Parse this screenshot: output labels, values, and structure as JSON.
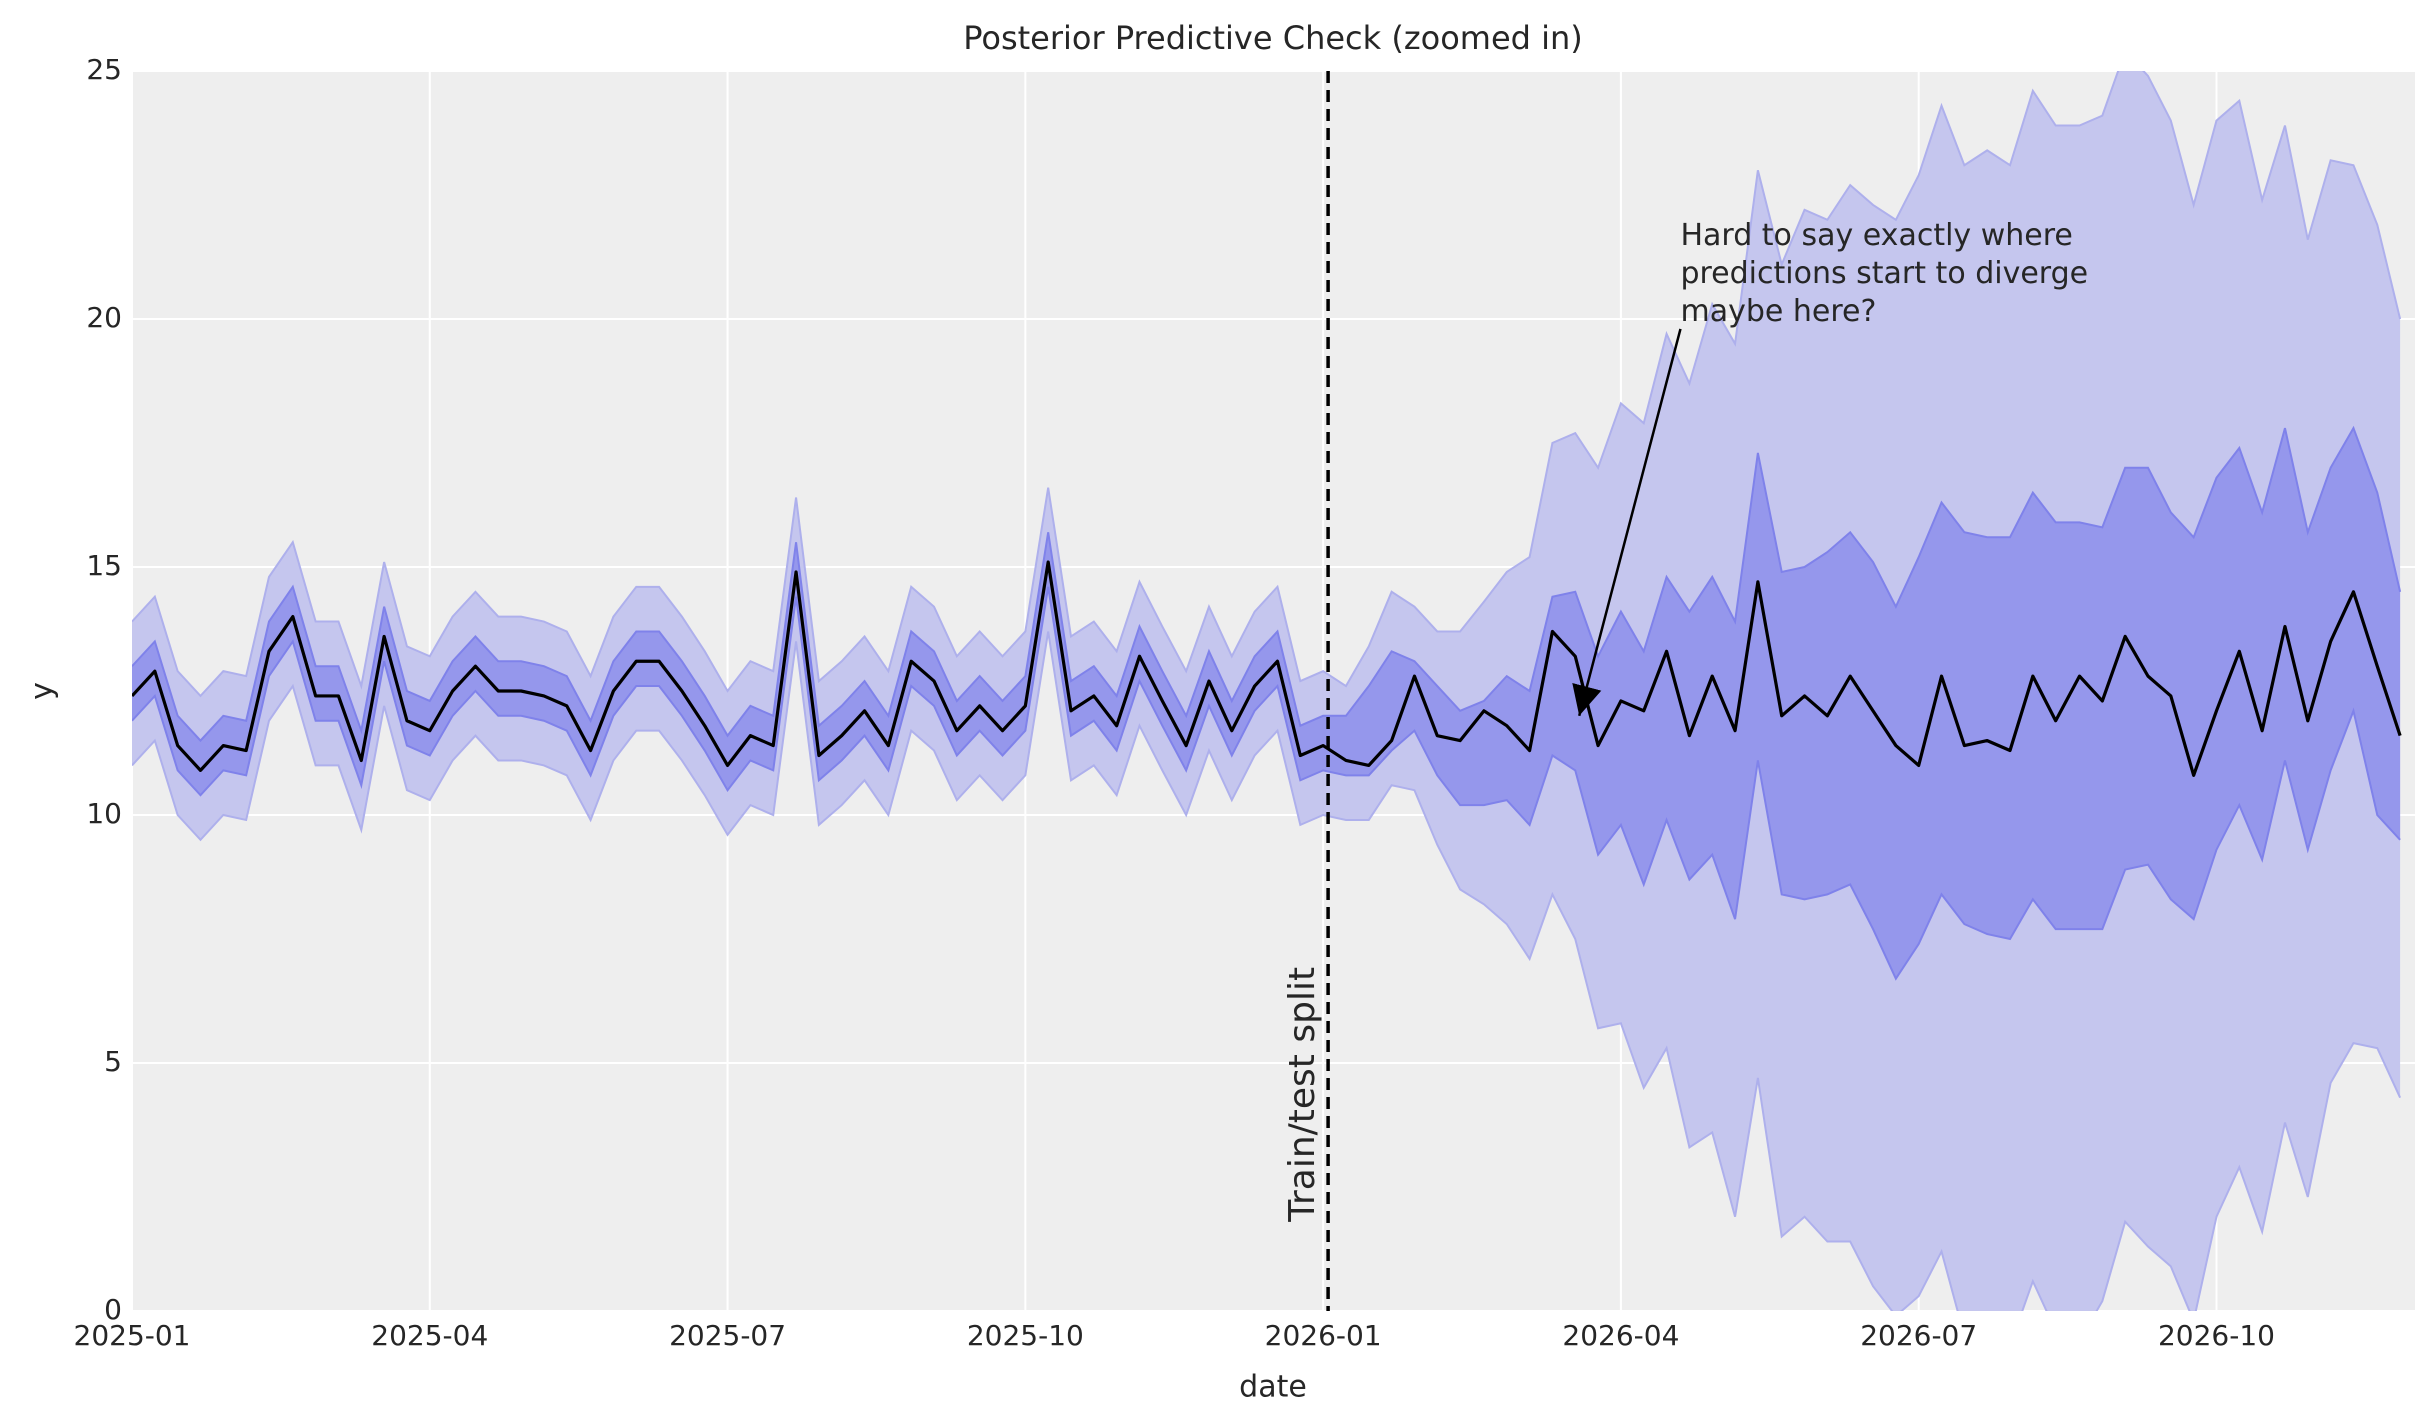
{
  "chart_data": {
    "type": "line",
    "title": "Posterior Predictive Check (zoomed in)",
    "x_label": "date",
    "y_label": "y",
    "xlim": [
      0,
      23
    ],
    "ylim": [
      0,
      25
    ],
    "xticks": [
      {
        "value": 0,
        "label": "2025-01"
      },
      {
        "value": 3,
        "label": "2025-04"
      },
      {
        "value": 6,
        "label": "2025-07"
      },
      {
        "value": 9,
        "label": "2025-10"
      },
      {
        "value": 12,
        "label": "2026-01"
      },
      {
        "value": 15,
        "label": "2026-04"
      },
      {
        "value": 18,
        "label": "2026-07"
      },
      {
        "value": 21,
        "label": "2026-10"
      }
    ],
    "yticks": [
      0,
      5,
      10,
      15,
      20,
      25
    ],
    "grid": true,
    "x": [
      0,
      0.23,
      0.46,
      0.69,
      0.92,
      1.15,
      1.38,
      1.62,
      1.85,
      2.08,
      2.31,
      2.54,
      2.77,
      3.0,
      3.23,
      3.46,
      3.69,
      3.92,
      4.15,
      4.38,
      4.62,
      4.85,
      5.08,
      5.31,
      5.54,
      5.77,
      6.0,
      6.23,
      6.46,
      6.69,
      6.92,
      7.15,
      7.38,
      7.62,
      7.85,
      8.08,
      8.31,
      8.54,
      8.77,
      9.0,
      9.23,
      9.46,
      9.69,
      9.92,
      10.15,
      10.38,
      10.62,
      10.85,
      11.08,
      11.31,
      11.54,
      11.77,
      12.0,
      12.23,
      12.46,
      12.69,
      12.92,
      13.15,
      13.38,
      13.62,
      13.85,
      14.08,
      14.31,
      14.54,
      14.77,
      15.0,
      15.23,
      15.46,
      15.69,
      15.92,
      16.15,
      16.38,
      16.62,
      16.85,
      17.08,
      17.31,
      17.54,
      17.77,
      18.0,
      18.23,
      18.46,
      18.69,
      18.92,
      19.15,
      19.38,
      19.62,
      19.85,
      20.08,
      20.31,
      20.54,
      20.77,
      21.0,
      21.23,
      21.46,
      21.69,
      21.92,
      22.15,
      22.38,
      22.62,
      22.85
    ],
    "bands": [
      {
        "color": "#c5c6ee",
        "edge": "#aeb0ec",
        "upper": [
          13.9,
          14.4,
          12.9,
          12.4,
          12.9,
          12.8,
          14.8,
          15.5,
          13.9,
          13.9,
          12.6,
          15.1,
          13.4,
          13.2,
          14.0,
          14.5,
          14.0,
          14.0,
          13.9,
          13.7,
          12.8,
          14.0,
          14.6,
          14.6,
          14.0,
          13.3,
          12.5,
          13.1,
          12.9,
          16.4,
          12.7,
          13.1,
          13.6,
          12.9,
          14.6,
          14.2,
          13.2,
          13.7,
          13.2,
          13.7,
          16.6,
          13.6,
          13.9,
          13.3,
          14.7,
          13.8,
          12.9,
          14.2,
          13.2,
          14.1,
          14.6,
          12.7,
          12.9,
          12.6,
          13.4,
          14.5,
          14.2,
          13.7,
          13.7,
          14.3,
          14.9,
          15.2,
          17.5,
          17.7,
          17.0,
          18.3,
          17.9,
          19.7,
          18.7,
          20.3,
          19.5,
          23.0,
          21.1,
          22.2,
          22.0,
          22.7,
          22.3,
          22.0,
          22.9,
          24.3,
          23.1,
          23.4,
          23.1,
          24.6,
          23.9,
          23.9,
          24.1,
          25.4,
          24.9,
          24.0,
          22.3,
          24.0,
          24.4,
          22.4,
          23.9,
          21.6,
          23.2,
          23.1,
          21.9,
          20.0
        ],
        "lower": [
          11.0,
          11.5,
          10.0,
          9.5,
          10.0,
          9.9,
          11.9,
          12.6,
          11.0,
          11.0,
          9.7,
          12.2,
          10.5,
          10.3,
          11.1,
          11.6,
          11.1,
          11.1,
          11.0,
          10.8,
          9.9,
          11.1,
          11.7,
          11.7,
          11.1,
          10.4,
          9.6,
          10.2,
          10.0,
          13.5,
          9.8,
          10.2,
          10.7,
          10.0,
          11.7,
          11.3,
          10.3,
          10.8,
          10.3,
          10.8,
          13.7,
          10.7,
          11.0,
          10.4,
          11.8,
          10.9,
          10.0,
          11.3,
          10.3,
          11.2,
          11.7,
          9.8,
          10.0,
          9.9,
          9.9,
          10.6,
          10.5,
          9.4,
          8.5,
          8.2,
          7.8,
          7.1,
          8.4,
          7.5,
          5.7,
          5.8,
          4.5,
          5.3,
          3.3,
          3.6,
          1.9,
          4.7,
          1.5,
          1.9,
          1.4,
          1.4,
          0.5,
          -0.1,
          0.3,
          1.2,
          -0.5,
          -0.6,
          -0.7,
          0.6,
          -0.4,
          -0.6,
          0.2,
          1.8,
          1.3,
          0.9,
          -0.2,
          1.9,
          2.9,
          1.6,
          3.8,
          2.3,
          4.6,
          5.4,
          5.3,
          4.3
        ]
      },
      {
        "color": "#9597ec",
        "edge": "#7f82ea",
        "upper": [
          13.0,
          13.5,
          12.0,
          11.5,
          12.0,
          11.9,
          13.9,
          14.6,
          13.0,
          13.0,
          11.7,
          14.2,
          12.5,
          12.3,
          13.1,
          13.6,
          13.1,
          13.1,
          13.0,
          12.8,
          11.9,
          13.1,
          13.7,
          13.7,
          13.1,
          12.4,
          11.6,
          12.2,
          12.0,
          15.5,
          11.8,
          12.2,
          12.7,
          12.0,
          13.7,
          13.3,
          12.3,
          12.8,
          12.3,
          12.8,
          15.7,
          12.7,
          13.0,
          12.4,
          13.8,
          12.9,
          12.0,
          13.3,
          12.3,
          13.2,
          13.7,
          11.8,
          12.0,
          12.0,
          12.6,
          13.3,
          13.1,
          12.6,
          12.1,
          12.3,
          12.8,
          12.5,
          14.4,
          14.5,
          13.2,
          14.1,
          13.3,
          14.8,
          14.1,
          14.8,
          13.9,
          17.3,
          14.9,
          15.0,
          15.3,
          15.7,
          15.1,
          14.2,
          15.2,
          16.3,
          15.7,
          15.6,
          15.6,
          16.5,
          15.9,
          15.9,
          15.8,
          17.0,
          17.0,
          16.1,
          15.6,
          16.8,
          17.4,
          16.1,
          17.8,
          15.7,
          17.0,
          17.8,
          16.5,
          14.5
        ],
        "lower": [
          11.9,
          12.4,
          10.9,
          10.4,
          10.9,
          10.8,
          12.8,
          13.5,
          11.9,
          11.9,
          10.6,
          13.1,
          11.4,
          11.2,
          12.0,
          12.5,
          12.0,
          12.0,
          11.9,
          11.7,
          10.8,
          12.0,
          12.6,
          12.6,
          12.0,
          11.3,
          10.5,
          11.1,
          10.9,
          14.4,
          10.7,
          11.1,
          11.6,
          10.9,
          12.6,
          12.2,
          11.2,
          11.7,
          11.2,
          11.7,
          14.6,
          11.6,
          11.9,
          11.3,
          12.7,
          11.8,
          10.9,
          12.2,
          11.2,
          12.1,
          12.6,
          10.7,
          10.9,
          10.8,
          10.8,
          11.3,
          11.7,
          10.8,
          10.2,
          10.2,
          10.3,
          9.8,
          11.2,
          10.9,
          9.2,
          9.8,
          8.6,
          9.9,
          8.7,
          9.2,
          7.9,
          11.1,
          8.4,
          8.3,
          8.4,
          8.6,
          7.7,
          6.7,
          7.4,
          8.4,
          7.8,
          7.6,
          7.5,
          8.3,
          7.7,
          7.7,
          7.7,
          8.9,
          9.0,
          8.3,
          7.9,
          9.3,
          10.2,
          9.1,
          11.1,
          9.3,
          10.9,
          12.1,
          10.0,
          9.5
        ]
      }
    ],
    "series": [
      {
        "color": "#000000",
        "values": [
          12.4,
          12.9,
          11.4,
          10.9,
          11.4,
          11.3,
          13.3,
          14.0,
          12.4,
          12.4,
          11.1,
          13.6,
          11.9,
          11.7,
          12.5,
          13.0,
          12.5,
          12.5,
          12.4,
          12.2,
          11.3,
          12.5,
          13.1,
          13.1,
          12.5,
          11.8,
          11.0,
          11.6,
          11.4,
          14.9,
          11.2,
          11.6,
          12.1,
          11.4,
          13.1,
          12.7,
          11.7,
          12.2,
          11.7,
          12.2,
          15.1,
          12.1,
          12.4,
          11.8,
          13.2,
          12.3,
          11.4,
          12.7,
          11.7,
          12.6,
          13.1,
          11.2,
          11.4,
          11.1,
          11.0,
          11.5,
          12.8,
          11.6,
          11.5,
          12.1,
          11.8,
          11.3,
          13.7,
          13.2,
          11.4,
          12.3,
          12.1,
          13.3,
          11.6,
          12.8,
          11.7,
          14.7,
          12.0,
          12.4,
          12.0,
          12.8,
          12.1,
          11.4,
          11.0,
          12.8,
          11.4,
          11.5,
          11.3,
          12.8,
          11.9,
          12.8,
          12.3,
          13.6,
          12.8,
          12.4,
          10.8,
          12.1,
          13.3,
          11.7,
          13.8,
          11.9,
          13.5,
          14.5,
          13.0,
          11.6
        ]
      }
    ],
    "vline": {
      "x": 12.05,
      "label": "Train/test split"
    },
    "annotation": {
      "lines": [
        "Hard to say exactly where",
        "predictions start to diverge",
        "maybe here?"
      ],
      "xy": [
        14.58,
        12.0
      ],
      "xytext": [
        15.6,
        19.8
      ]
    }
  }
}
